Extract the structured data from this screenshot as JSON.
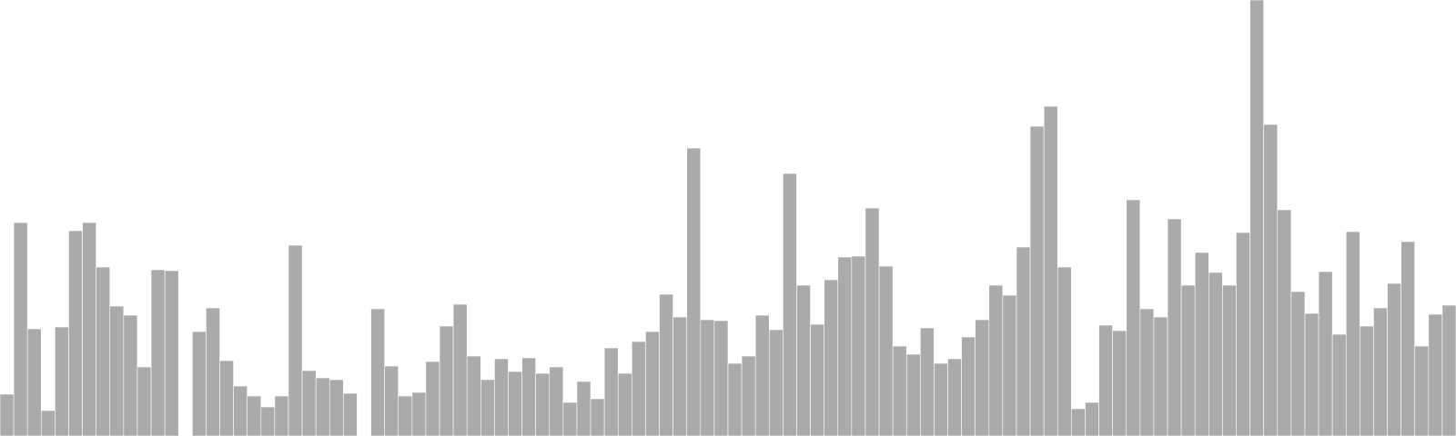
{
  "chart_data": {
    "type": "bar",
    "title": "",
    "xlabel": "",
    "ylabel": "",
    "grid": false,
    "legend": "none",
    "ylim": [
      0,
      480
    ],
    "colors": {
      "bar_fill": "#aaaaaa",
      "bar_stroke": "#ffffff",
      "background": "#ffffff"
    },
    "values": [
      46,
      235,
      118,
      28,
      120,
      226,
      235,
      186,
      143,
      133,
      76,
      183,
      182,
      0,
      115,
      141,
      83,
      55,
      44,
      32,
      44,
      210,
      72,
      64,
      62,
      47,
      0,
      140,
      77,
      44,
      48,
      82,
      121,
      145,
      88,
      62,
      85,
      71,
      86,
      69,
      76,
      37,
      60,
      41,
      97,
      69,
      104,
      115,
      156,
      131,
      317,
      128,
      127,
      80,
      88,
      133,
      117,
      289,
      166,
      123,
      172,
      197,
      198,
      251,
      187,
      99,
      90,
      119,
      80,
      85,
      109,
      128,
      166,
      155,
      208,
      341,
      363,
      186,
      30,
      37,
      122,
      116,
      260,
      140,
      131,
      239,
      166,
      202,
      180,
      166,
      224,
      480,
      343,
      249,
      159,
      135,
      181,
      112,
      225,
      121,
      141,
      168,
      214,
      99,
      134,
      144
    ]
  }
}
